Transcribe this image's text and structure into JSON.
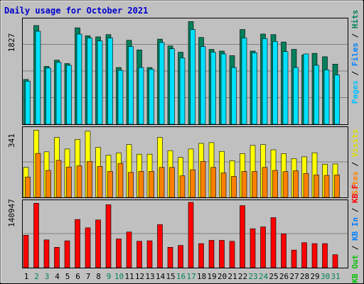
{
  "title": "Daily usage for October 2021",
  "colors": {
    "background": "#C0C0C0",
    "title": "#0000CC",
    "grid": "#808080",
    "hits": "#00805C",
    "files": "#00C0FF",
    "pages": "#00E0FF",
    "visits": "#FFFF00",
    "sites": "#FF8000",
    "kb": "#FF0000",
    "kb_in": "#0080FF",
    "kb_out": "#00C000",
    "day_weekday": "#000000",
    "day_weekend": "#00805C"
  },
  "chart_data": [
    {
      "type": "bar",
      "panel": "top",
      "ymax_label": "1827",
      "ylim": [
        0,
        1827
      ],
      "x": [
        1,
        2,
        3,
        4,
        5,
        6,
        7,
        8,
        9,
        10,
        11,
        12,
        13,
        14,
        15,
        16,
        17,
        18,
        19,
        20,
        21,
        22,
        23,
        24,
        25,
        26,
        27,
        28,
        29,
        30,
        31
      ],
      "legend": {
        "sep": " / ",
        "items": [
          {
            "label": "Hits",
            "color": "#00805C"
          },
          {
            "label": "Files",
            "color": "#0080FF"
          },
          {
            "label": "Pages",
            "color": "#00C0FF"
          }
        ]
      },
      "series": [
        {
          "name": "Hits",
          "values": [
            790,
            1740,
            1020,
            1130,
            1070,
            1700,
            1560,
            1540,
            1580,
            1000,
            1480,
            1310,
            1000,
            1500,
            1380,
            1270,
            1810,
            1530,
            1320,
            1290,
            1210,
            1670,
            1290,
            1590,
            1580,
            1450,
            1320,
            1220,
            1250,
            1190,
            1060
          ]
        },
        {
          "name": "Files",
          "values": [
            760,
            1640,
            990,
            1090,
            1040,
            1590,
            1520,
            1470,
            1520,
            950,
            1370,
            1000,
            970,
            1440,
            1330,
            1170,
            1670,
            1370,
            1270,
            1240,
            1000,
            1520,
            1260,
            1510,
            1460,
            1280,
            1000,
            1240,
            1040,
            960,
            870
          ]
        }
      ]
    },
    {
      "type": "bar",
      "panel": "middle",
      "ymax_label": "341",
      "ylim": [
        0,
        341
      ],
      "x": [
        1,
        2,
        3,
        4,
        5,
        6,
        7,
        8,
        9,
        10,
        11,
        12,
        13,
        14,
        15,
        16,
        17,
        18,
        19,
        20,
        21,
        22,
        23,
        24,
        25,
        26,
        27,
        28,
        29,
        30,
        31
      ],
      "legend": {
        "sep": " / ",
        "items": [
          {
            "label": "Visits",
            "color": "#E0E000"
          },
          {
            "label": "Sites",
            "color": "#FF8000"
          }
        ]
      },
      "series": [
        {
          "name": "Visits",
          "values": [
            150,
            336,
            228,
            300,
            242,
            290,
            331,
            250,
            211,
            222,
            264,
            216,
            216,
            300,
            234,
            200,
            242,
            270,
            274,
            230,
            183,
            219,
            260,
            264,
            238,
            219,
            194,
            203,
            223,
            166,
            167
          ]
        },
        {
          "name": "Sites",
          "values": [
            102,
            220,
            135,
            185,
            152,
            158,
            180,
            155,
            130,
            170,
            125,
            130,
            130,
            150,
            150,
            108,
            138,
            180,
            150,
            122,
            105,
            130,
            130,
            150,
            135,
            129,
            133,
            120,
            112,
            110,
            112
          ]
        }
      ]
    },
    {
      "type": "bar",
      "panel": "bottom",
      "ymax_label": "140947",
      "ylim": [
        0,
        140947
      ],
      "x": [
        1,
        2,
        3,
        4,
        5,
        6,
        7,
        8,
        9,
        10,
        11,
        12,
        13,
        14,
        15,
        16,
        17,
        18,
        19,
        20,
        21,
        22,
        23,
        24,
        25,
        26,
        27,
        28,
        29,
        30,
        31
      ],
      "legend": {
        "sep": " / ",
        "items": [
          {
            "label": "KB F",
            "color": "#FF0000"
          },
          {
            "label": "KB In",
            "color": "#0080FF"
          },
          {
            "label": "KB Out",
            "color": "#00C000"
          }
        ]
      },
      "series": [
        {
          "name": "KB F",
          "values": [
            70000,
            139000,
            60000,
            44000,
            58000,
            104000,
            86000,
            103000,
            136000,
            62000,
            77000,
            57000,
            58000,
            93000,
            44000,
            48000,
            141000,
            52000,
            59000,
            59000,
            57000,
            134000,
            84000,
            88000,
            108000,
            73000,
            38000,
            54000,
            52000,
            52000,
            28000
          ]
        }
      ]
    }
  ],
  "x_labels": [
    "1",
    "2",
    "3",
    "4",
    "5",
    "6",
    "7",
    "8",
    "9",
    "10",
    "11",
    "12",
    "13",
    "14",
    "15",
    "16",
    "17",
    "18",
    "19",
    "20",
    "21",
    "22",
    "23",
    "24",
    "25",
    "26",
    "27",
    "28",
    "29",
    "30",
    "31"
  ],
  "weekend_days": [
    2,
    3,
    9,
    10,
    16,
    17,
    23,
    24,
    30,
    31
  ]
}
